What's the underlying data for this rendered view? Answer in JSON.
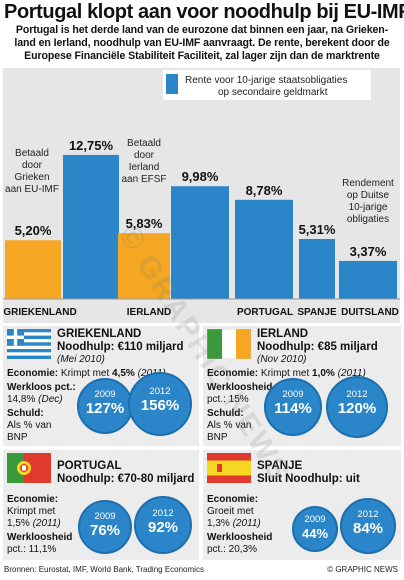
{
  "headline": "Portugal klopt aan voor noodhulp bij EU-IMF",
  "intro_lines": [
    "Portugal is het derde land van de eurozone dat binnen een jaar, na Grieken-",
    "land en Ierland, noodhulp van EU-IMF aanvraagt. De rente, berekent door de",
    "Europese Financiële Stabiliteit Faciliteit, zal lager zijn dan de marktrente"
  ],
  "colors": {
    "blue": "#2a86c8",
    "orange": "#f5a623",
    "panel": "#ececec",
    "chart_bg": "#e6e6e6"
  },
  "chart_data": {
    "type": "bar",
    "categories": [
      "GRIEKENLAND",
      "IERLAND",
      "PORTUGAL",
      "SPANJE",
      "DUITSLAND"
    ],
    "legend": [
      "Rente voor 10-jarige staatsobligaties",
      "op secondaire geldmarkt"
    ],
    "series": [
      {
        "name": "Rente voor 10-jarige staatsobligaties op secondaire geldmarkt",
        "values": [
          12.75,
          9.98,
          8.78,
          5.31,
          3.37
        ],
        "color": "#2a86c8"
      },
      {
        "name": "EFSF",
        "values": [
          5.2,
          5.83,
          null,
          null,
          null
        ],
        "color": "#f5a623"
      }
    ],
    "value_labels": {
      "blue": [
        "12,75%",
        "9,98%",
        "8,78%",
        "5,31%",
        "3,37%"
      ],
      "orange": [
        "5,20%",
        "5,83%"
      ]
    },
    "annotations": [
      {
        "lines": [
          "Betaald",
          "door",
          "Grieken",
          "aan EU-IMF"
        ]
      },
      {
        "lines": [
          "Betaald",
          "door",
          "Ierland",
          "aan EFSF"
        ]
      },
      {
        "lines": [
          "Rendement",
          "op Duitse",
          "10-jarige",
          "obligaties"
        ]
      }
    ],
    "ylim": [
      0,
      14
    ]
  },
  "panels": [
    {
      "title": "GRIEKENLAND",
      "aid": "Noodhulp: €110 miljard",
      "aid_date": "(Mei 2010)",
      "lines": [
        {
          "label": "Economie:",
          "text": " Krimpt met ",
          "value": "4,5%",
          "note": " (2011)"
        },
        {
          "label": "Werkloos pct.:",
          "text": "",
          "value": "",
          "note": ""
        },
        {
          "label": "",
          "text": "14,8% ",
          "value": "",
          "note": "(Dec)"
        },
        {
          "label": "Schuld:",
          "text": "",
          "value": "",
          "note": ""
        },
        {
          "label": "",
          "text": "Als % van",
          "value": "",
          "note": ""
        },
        {
          "label": "",
          "text": "BNP",
          "value": "",
          "note": ""
        }
      ],
      "circles": [
        {
          "year": "2009",
          "value": "127%"
        },
        {
          "year": "2012",
          "value": "156%"
        }
      ]
    },
    {
      "title": "IERLAND",
      "aid": "Noodhulp: €85 miljard",
      "aid_date": "(Nov 2010)",
      "lines": [
        {
          "label": "Economie:",
          "text": " Krimpt met ",
          "value": "1,0%",
          "note": " (2011)"
        },
        {
          "label": "Werkloosheid",
          "text": "",
          "value": "",
          "note": ""
        },
        {
          "label": "",
          "text": "pct.: 15%",
          "value": "",
          "note": ""
        },
        {
          "label": "Schuld:",
          "text": "",
          "value": "",
          "note": ""
        },
        {
          "label": "",
          "text": "Als % van",
          "value": "",
          "note": ""
        },
        {
          "label": "",
          "text": "BNP",
          "value": "",
          "note": ""
        }
      ],
      "circles": [
        {
          "year": "2009",
          "value": "114%"
        },
        {
          "year": "2012",
          "value": "120%"
        }
      ]
    },
    {
      "title": "PORTUGAL",
      "aid": "Noodhulp: €70-80 miljard",
      "aid_date": "",
      "lines": [
        {
          "label": "Economie:",
          "text": "",
          "value": "",
          "note": ""
        },
        {
          "label": "",
          "text": "Krimpt met",
          "value": "",
          "note": ""
        },
        {
          "label": "",
          "text": "1,5% ",
          "value": "",
          "note": "(2011)"
        },
        {
          "label": "Werkloosheid",
          "text": "",
          "value": "",
          "note": ""
        },
        {
          "label": "",
          "text": "pct.: 11,1%",
          "value": "",
          "note": ""
        }
      ],
      "circles": [
        {
          "year": "2009",
          "value": "76%"
        },
        {
          "year": "2012",
          "value": "92%"
        }
      ]
    },
    {
      "title": "SPANJE",
      "aid": "Sluit Noodhulp: uit",
      "aid_date": "",
      "lines": [
        {
          "label": "Economie:",
          "text": "",
          "value": "",
          "note": ""
        },
        {
          "label": "",
          "text": "Groeit met",
          "value": "",
          "note": ""
        },
        {
          "label": "",
          "text": "1,3% ",
          "value": "",
          "note": "(2011)"
        },
        {
          "label": "Werkloosheid",
          "text": "",
          "value": "",
          "note": ""
        },
        {
          "label": "",
          "text": "pct.: 20,3%",
          "value": "",
          "note": ""
        }
      ],
      "circles": [
        {
          "year": "2009",
          "value": "44%"
        },
        {
          "year": "2012",
          "value": "84%"
        }
      ]
    }
  ],
  "footer": {
    "sources": "Bronnen: Eurostat, IMF, World Bank, Trading Economics",
    "credit": "© GRAPHIC NEWS"
  },
  "watermark": "© GRAPHIC NEWS"
}
